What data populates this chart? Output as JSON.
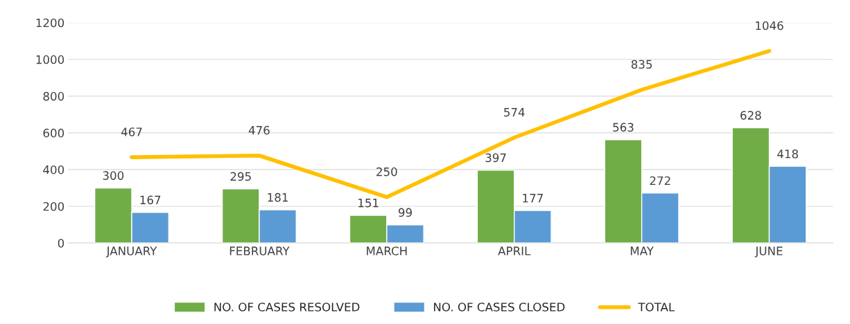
{
  "chart_data": {
    "type": "bar",
    "categories": [
      "JANUARY",
      "FEBRUARY",
      "MARCH",
      "APRIL",
      "MAY",
      "JUNE"
    ],
    "series": [
      {
        "name": "NO. OF CASES RESOLVED",
        "color": "#70ad47",
        "values": [
          300,
          295,
          151,
          397,
          563,
          628
        ]
      },
      {
        "name": "NO. OF CASES CLOSED",
        "color": "#5b9bd5",
        "values": [
          167,
          181,
          99,
          177,
          272,
          418
        ]
      },
      {
        "name": "TOTAL",
        "type": "line",
        "color": "#ffc000",
        "values": [
          467,
          476,
          250,
          574,
          835,
          1046
        ]
      }
    ],
    "ylim": [
      0,
      1200
    ],
    "yticks": [
      0,
      200,
      400,
      600,
      800,
      1000,
      1200
    ],
    "grid": "y",
    "legend": "bottom",
    "data_labels": true,
    "marker": "none",
    "line_style": "solid"
  }
}
